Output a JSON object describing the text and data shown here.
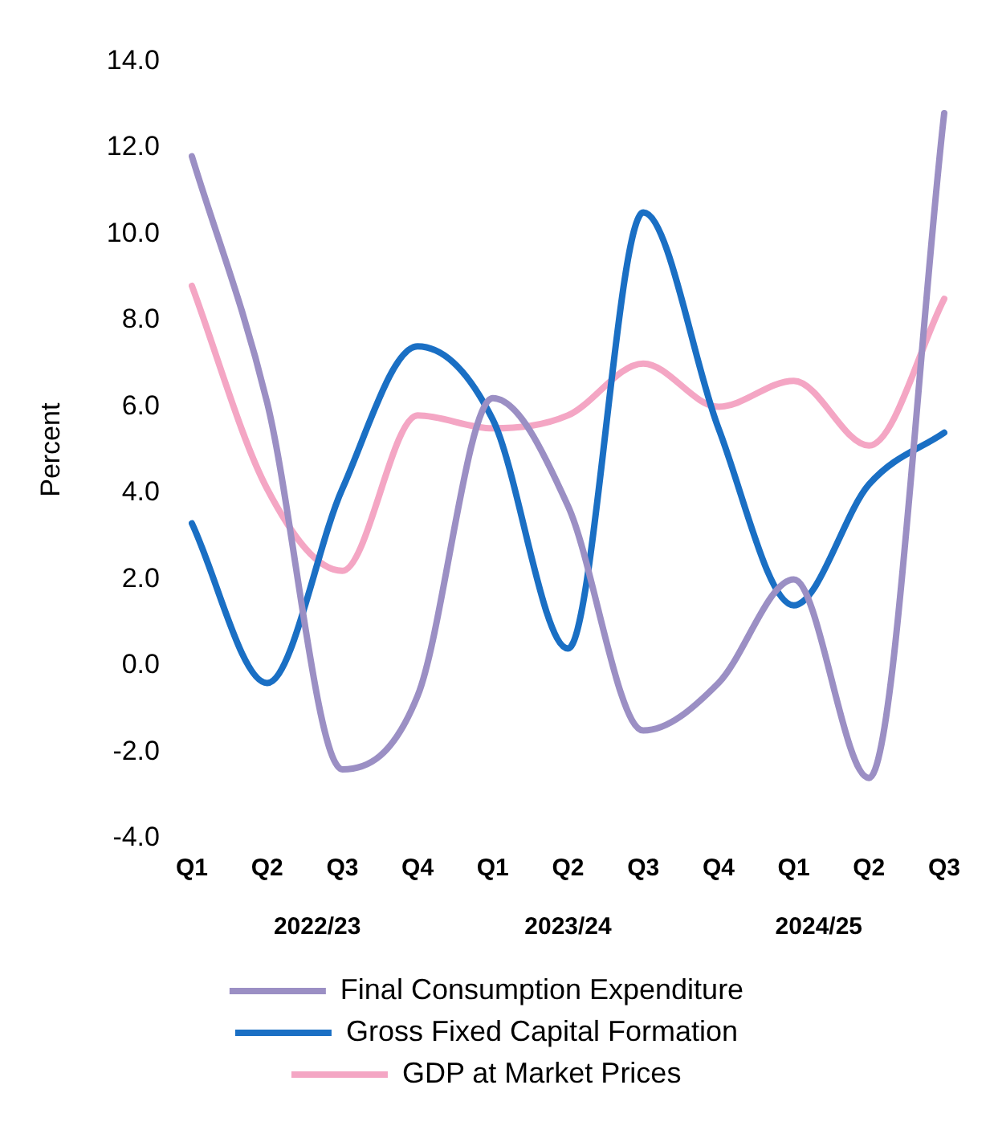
{
  "chart_data": {
    "type": "line",
    "ylabel": "Percent",
    "categories": [
      "Q1",
      "Q2",
      "Q3",
      "Q4",
      "Q1",
      "Q2",
      "Q3",
      "Q4",
      "Q1",
      "Q2",
      "Q3"
    ],
    "series": [
      {
        "name": "Final Consumption Expenditure",
        "color": "#9b8fc4",
        "values": [
          11.8,
          6.1,
          -2.4,
          -0.7,
          6.2,
          3.7,
          -1.5,
          -0.4,
          2.0,
          -2.6,
          12.8
        ]
      },
      {
        "name": "Gross Fixed Capital Formation",
        "color": "#1a6fc4",
        "values": [
          3.3,
          -0.4,
          4.1,
          7.4,
          5.7,
          0.4,
          10.5,
          5.5,
          1.4,
          4.2,
          5.4
        ]
      },
      {
        "name": "GDP at Market Prices",
        "color": "#f4a6c4",
        "values": [
          8.8,
          4.1,
          2.2,
          5.8,
          5.5,
          5.8,
          7.0,
          6.0,
          6.6,
          5.1,
          8.5
        ]
      }
    ],
    "ylim": [
      -4,
      14
    ],
    "yticks": [
      {
        "value": -4,
        "label": "-4.0"
      },
      {
        "value": -2,
        "label": "-2.0"
      },
      {
        "value": 0,
        "label": "0.0"
      },
      {
        "value": 2,
        "label": "2.0"
      },
      {
        "value": 4,
        "label": "4.0"
      },
      {
        "value": 6,
        "label": "6.0"
      },
      {
        "value": 8,
        "label": "8.0"
      },
      {
        "value": 10,
        "label": "10.0"
      },
      {
        "value": 12,
        "label": "12.0"
      },
      {
        "value": 14,
        "label": "14.0"
      }
    ],
    "annotations": [
      "2022/23",
      "2023/24",
      "2024/25"
    ],
    "grid": false,
    "legend": "bottom",
    "marker": "none",
    "line_style": "solid"
  }
}
